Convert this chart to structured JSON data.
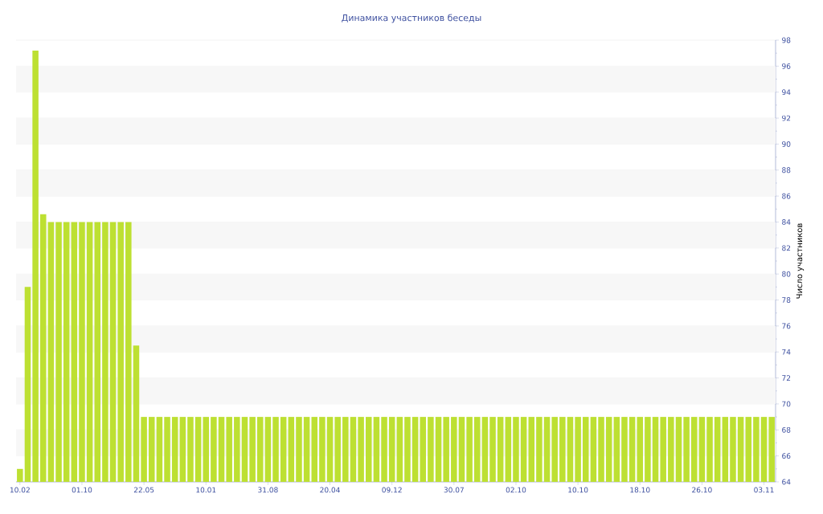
{
  "chart_data": {
    "type": "bar",
    "title": "Динамика участников беседы",
    "ylabel": "Число участников",
    "categories": [
      "10.02",
      null,
      null,
      null,
      null,
      null,
      null,
      null,
      "01.10",
      null,
      null,
      null,
      null,
      null,
      null,
      null,
      "22.05",
      null,
      null,
      null,
      null,
      null,
      null,
      null,
      "10.01",
      null,
      null,
      null,
      null,
      null,
      null,
      null,
      "31.08",
      null,
      null,
      null,
      null,
      null,
      null,
      null,
      "20.04",
      null,
      null,
      null,
      null,
      null,
      null,
      null,
      "09.12",
      null,
      null,
      null,
      null,
      null,
      null,
      null,
      "30.07",
      null,
      null,
      null,
      null,
      null,
      null,
      null,
      "02.10",
      null,
      null,
      null,
      null,
      null,
      null,
      null,
      "10.10",
      null,
      null,
      null,
      null,
      null,
      null,
      null,
      "18.10",
      null,
      null,
      null,
      null,
      null,
      null,
      null,
      "26.10",
      null,
      null,
      null,
      null,
      null,
      null,
      null,
      "03.11",
      null
    ],
    "values": [
      65,
      79,
      97.2,
      84.6,
      84,
      84,
      84,
      84,
      84,
      84,
      84,
      84,
      84,
      84,
      84,
      74.5,
      69,
      69,
      69,
      69,
      69,
      69,
      69,
      69,
      69,
      69,
      69,
      69,
      69,
      69,
      69,
      69,
      69,
      69,
      69,
      69,
      69,
      69,
      69,
      69,
      69,
      69,
      69,
      69,
      69,
      69,
      69,
      69,
      69,
      69,
      69,
      69,
      69,
      69,
      69,
      69,
      69,
      69,
      69,
      69,
      69,
      69,
      69,
      69,
      69,
      69,
      69,
      69,
      69,
      69,
      69,
      69,
      69,
      69,
      69,
      69,
      69,
      69,
      69,
      69,
      69,
      69,
      69,
      69,
      69,
      69,
      69,
      69,
      69,
      69,
      69,
      69,
      69,
      69,
      69,
      69,
      69,
      69
    ],
    "color": "#bde032",
    "ylim": [
      64,
      98
    ],
    "yticks": [
      64,
      66,
      68,
      70,
      72,
      74,
      76,
      78,
      80,
      82,
      84,
      86,
      88,
      90,
      92,
      94,
      96,
      98
    ],
    "grid": "y"
  }
}
